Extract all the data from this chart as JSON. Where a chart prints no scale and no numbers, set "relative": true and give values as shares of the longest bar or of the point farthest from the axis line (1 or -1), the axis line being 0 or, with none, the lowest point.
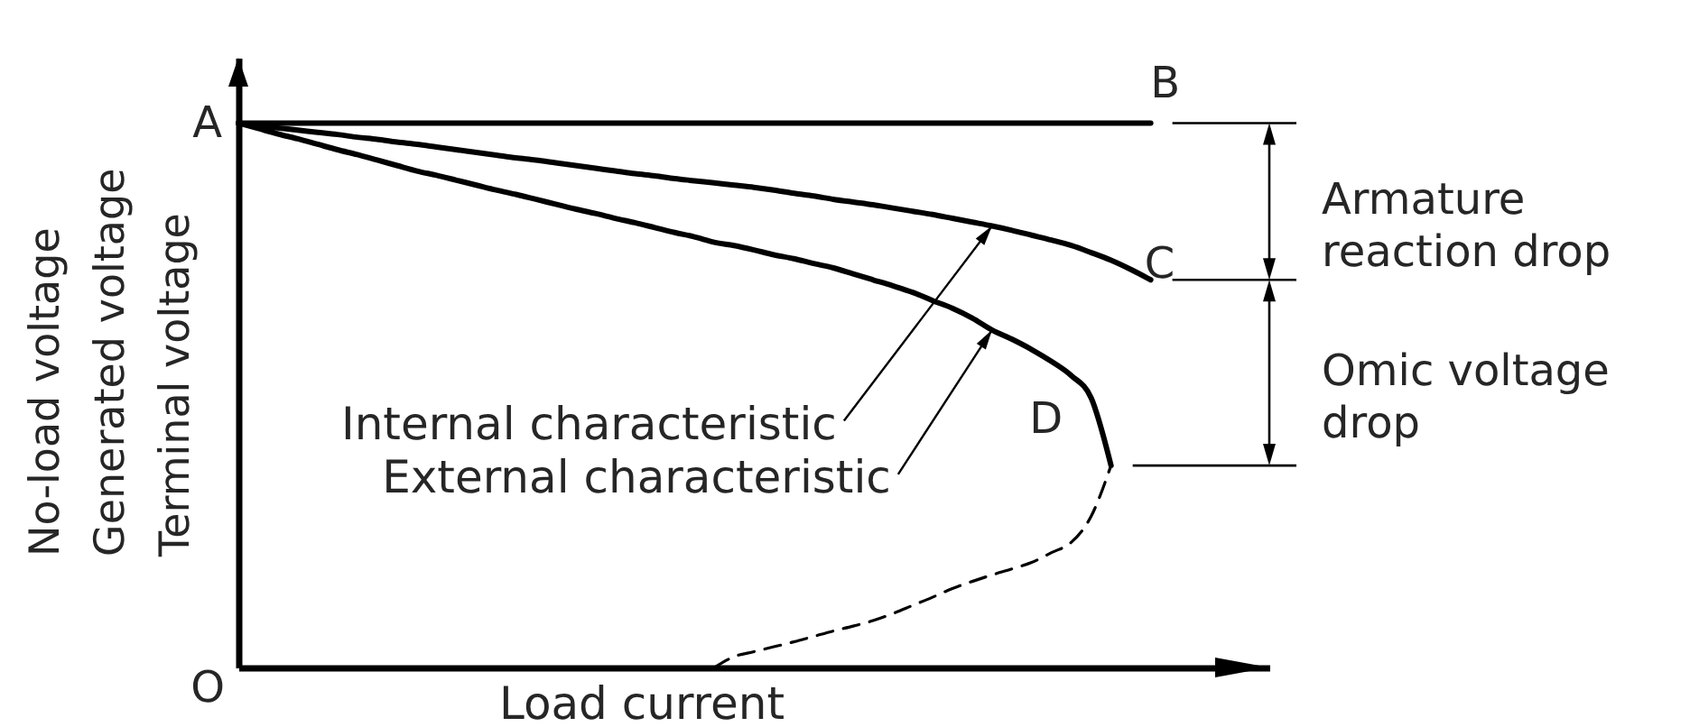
{
  "chart_data": {
    "type": "line",
    "relative": true,
    "xlabel": "Load current",
    "ylabel": "No-load voltage\nGenerated voltage\nTerminal voltage",
    "tick_labels": false,
    "line_style": "solid",
    "categories": [
      null,
      null,
      null,
      null,
      null,
      null,
      null,
      null,
      null,
      null,
      null,
      null,
      null,
      null,
      null,
      null,
      null,
      null,
      null,
      null,
      null,
      null,
      null,
      null,
      null,
      null,
      null,
      null,
      null,
      null,
      null,
      null,
      null,
      null,
      null,
      null,
      null,
      null,
      null,
      null,
      null,
      null,
      null,
      null,
      null,
      null,
      null
    ],
    "series": [
      {
        "color": "#000000",
        "values": [
          1,
          1,
          1,
          1,
          1,
          1,
          1,
          1,
          1,
          1,
          1,
          1,
          1,
          1,
          1,
          1,
          1,
          1,
          1,
          1,
          1,
          1,
          1,
          1,
          1,
          1,
          1,
          1,
          1,
          1,
          1,
          1,
          1,
          1,
          1,
          1,
          1,
          1,
          1,
          1,
          1,
          1,
          1,
          1,
          1,
          1,
          1
        ]
      },
      {
        "color": "#000000",
        "values": [
          1,
          0.995,
          0.991,
          0.987,
          0.983,
          0.979,
          0.974,
          0.97,
          0.965,
          0.961,
          0.956,
          0.951,
          0.946,
          0.941,
          0.936,
          0.932,
          0.927,
          0.922,
          0.917,
          0.912,
          0.907,
          0.903,
          0.898,
          0.894,
          0.89,
          0.886,
          0.882,
          0.877,
          0.871,
          0.866,
          0.86,
          0.855,
          0.85,
          0.844,
          0.838,
          0.832,
          0.825,
          0.818,
          0.811,
          0.803,
          0.794,
          0.785,
          0.775,
          0.762,
          0.748,
          0.731,
          0.712
        ]
      },
      {
        "color": "#000000",
        "values": [
          1,
          0.99,
          0.98,
          0.971,
          0.961,
          0.951,
          0.942,
          0.932,
          0.922,
          0.912,
          0.904,
          0.895,
          0.886,
          0.877,
          0.869,
          0.86,
          0.851,
          0.842,
          0.834,
          0.825,
          0.817,
          0.808,
          0.799,
          0.791,
          0.781,
          0.775,
          0.767,
          0.758,
          0.751,
          0.742,
          0.734,
          0.723,
          0.712,
          0.701,
          0.689,
          0.674,
          0.66,
          0.642,
          0.62,
          0.603,
          0.584,
          0.562,
          0.536,
          0.495,
          0.371,
          null,
          null
        ]
      },
      {
        "color": "#000000",
        "line_style": "dashed",
        "values": [
          null,
          null,
          null,
          null,
          null,
          null,
          null,
          null,
          null,
          null,
          null,
          null,
          null,
          null,
          null,
          null,
          null,
          null,
          null,
          null,
          null,
          null,
          null,
          null,
          0,
          0.02,
          0.029,
          0.038,
          0.047,
          0.057,
          0.067,
          0.076,
          0.086,
          0.099,
          0.114,
          0.129,
          0.145,
          0.158,
          0.17,
          0.181,
          0.193,
          0.211,
          0.23,
          0.278,
          0.371,
          null,
          null
        ]
      }
    ],
    "annotations": [
      "A",
      "B",
      "C",
      "D",
      "O",
      "Internal characteristic",
      "External characteristic",
      "Armature reaction drop",
      "Omic voltage drop"
    ]
  }
}
